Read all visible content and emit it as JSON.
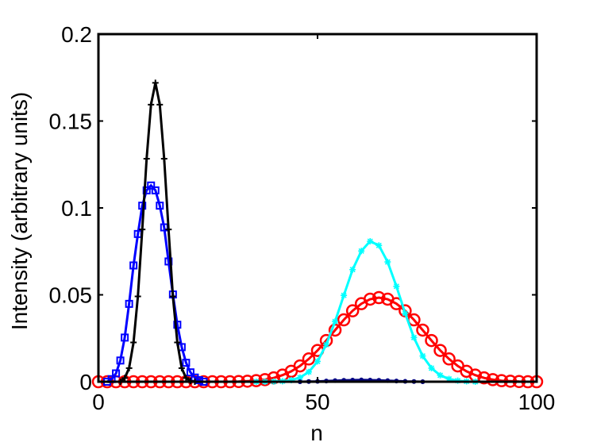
{
  "chart_data": {
    "type": "line",
    "xlabel": "n",
    "ylabel": "Intensity (arbitrary units)",
    "xlim": [
      0,
      100
    ],
    "ylim": [
      0,
      0.2
    ],
    "xticks": [
      0,
      50,
      100
    ],
    "xtick_labels": [
      "0",
      "50",
      "100"
    ],
    "yticks": [
      0,
      0.05,
      0.1,
      0.15,
      0.2
    ],
    "ytick_labels": [
      "0",
      "0.05",
      "0.1",
      "0.15",
      "0.2"
    ],
    "grid": false,
    "legend": "none",
    "series": [
      {
        "color": "#ff0000",
        "marker": "circle",
        "x": [
          0,
          2,
          4,
          6,
          8,
          10,
          12,
          14,
          16,
          18,
          20,
          22,
          24,
          26,
          28,
          30,
          32,
          34,
          36,
          38,
          40,
          42,
          44,
          46,
          48,
          50,
          52,
          54,
          56,
          58,
          60,
          62,
          64,
          66,
          68,
          70,
          72,
          74,
          76,
          78,
          80,
          82,
          84,
          86,
          88,
          90,
          92,
          94,
          96,
          98,
          100
        ],
        "y": [
          0,
          0,
          0,
          0,
          0,
          0,
          0,
          0,
          0,
          0,
          0,
          0,
          0,
          0,
          0,
          0,
          0.0001,
          0.0003,
          0.0006,
          0.0012,
          0.0022,
          0.0038,
          0.006,
          0.0091,
          0.0131,
          0.018,
          0.0237,
          0.0297,
          0.0356,
          0.0408,
          0.0449,
          0.0475,
          0.0484,
          0.0475,
          0.0449,
          0.0408,
          0.0356,
          0.0297,
          0.0237,
          0.018,
          0.0131,
          0.0091,
          0.006,
          0.0038,
          0.0022,
          0.0012,
          0.0006,
          0.0003,
          0.0001,
          0,
          0
        ]
      },
      {
        "color": "#00ffff",
        "marker": "star",
        "x": [
          36,
          38,
          40,
          42,
          44,
          46,
          48,
          50,
          52,
          54,
          56,
          58,
          60,
          62,
          64,
          66,
          68,
          70,
          72,
          74,
          76,
          78,
          80,
          82,
          84,
          86
        ],
        "y": [
          0,
          0,
          0.0001,
          0.0003,
          0.0009,
          0.0024,
          0.0056,
          0.0117,
          0.0214,
          0.0347,
          0.0497,
          0.0645,
          0.0752,
          0.0808,
          0.0784,
          0.0689,
          0.0549,
          0.0393,
          0.0254,
          0.0148,
          0.0078,
          0.0037,
          0.0016,
          0.0006,
          0.0002,
          0
        ]
      },
      {
        "color": "#0000ff",
        "marker": "square",
        "x": [
          2,
          3,
          4,
          5,
          6,
          7,
          8,
          9,
          10,
          11,
          12,
          13,
          14,
          15,
          16,
          17,
          18,
          19,
          20,
          21,
          22,
          23,
          24
        ],
        "y": [
          0,
          0.0015,
          0.0048,
          0.0122,
          0.0254,
          0.0448,
          0.0669,
          0.085,
          0.1013,
          0.1101,
          0.1129,
          0.1101,
          0.1013,
          0.0888,
          0.0692,
          0.0502,
          0.0328,
          0.0199,
          0.0109,
          0.0054,
          0.0024,
          0.0009,
          0
        ]
      },
      {
        "color": "#000000",
        "marker": "plus",
        "x": [
          5,
          6,
          7,
          8,
          9,
          10,
          11,
          12,
          13,
          14,
          15,
          16,
          17,
          18,
          19,
          20,
          21,
          22
        ],
        "y": [
          0,
          0.0021,
          0.0078,
          0.0226,
          0.0491,
          0.0876,
          0.1283,
          0.1594,
          0.172,
          0.1594,
          0.1283,
          0.0876,
          0.0491,
          0.0226,
          0.0078,
          0.0021,
          0.0004,
          0
        ]
      },
      {
        "color": "#000080",
        "marker": "dot",
        "x": [
          46,
          48,
          50,
          52,
          54,
          56,
          58,
          60,
          62,
          64,
          66,
          68,
          70,
          72,
          74
        ],
        "y": [
          0,
          0.0001,
          0.0002,
          0.0004,
          0.0006,
          0.0008,
          0.0009,
          0.001,
          0.0009,
          0.0008,
          0.0006,
          0.0004,
          0.0002,
          0.0001,
          0
        ]
      }
    ]
  }
}
